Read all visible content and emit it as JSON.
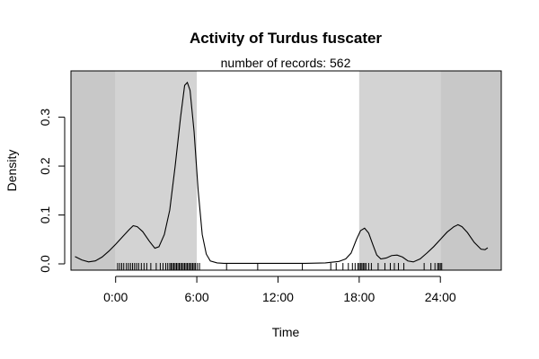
{
  "chart_data": {
    "type": "line",
    "title": "Activity of Turdus fuscater",
    "subtitle": "number of records: 562",
    "xlabel": "Time",
    "ylabel": "Density",
    "xlim": [
      -3.3,
      28.5
    ],
    "ylim": [
      0,
      0.38
    ],
    "x_ticks": [
      0,
      6,
      12,
      18,
      24
    ],
    "x_tick_labels": [
      "0:00",
      "6:00",
      "12:00",
      "18:00",
      "24:00"
    ],
    "y_ticks": [
      0.0,
      0.1,
      0.2,
      0.3
    ],
    "y_tick_labels": [
      "0.0",
      "0.1",
      "0.2",
      "0.3"
    ],
    "background": {
      "outer_shade_color": "#c8c8c8",
      "night_shade_color": "#d3d3d3",
      "day_color": "#ffffff",
      "night_bands": [
        [
          -3.3,
          0
        ],
        [
          0,
          6
        ],
        [
          18,
          24
        ],
        [
          24,
          28.5
        ]
      ]
    },
    "series": [
      {
        "points": [
          [
            -3.0,
            0.015
          ],
          [
            -2.5,
            0.008
          ],
          [
            -2.0,
            0.004
          ],
          [
            -1.5,
            0.006
          ],
          [
            -1.0,
            0.014
          ],
          [
            -0.5,
            0.026
          ],
          [
            0.0,
            0.04
          ],
          [
            0.5,
            0.055
          ],
          [
            1.0,
            0.07
          ],
          [
            1.3,
            0.078
          ],
          [
            1.6,
            0.076
          ],
          [
            2.0,
            0.066
          ],
          [
            2.5,
            0.046
          ],
          [
            2.9,
            0.032
          ],
          [
            3.2,
            0.035
          ],
          [
            3.6,
            0.06
          ],
          [
            4.0,
            0.11
          ],
          [
            4.4,
            0.2
          ],
          [
            4.8,
            0.3
          ],
          [
            5.1,
            0.365
          ],
          [
            5.3,
            0.371
          ],
          [
            5.5,
            0.355
          ],
          [
            5.8,
            0.27
          ],
          [
            6.1,
            0.15
          ],
          [
            6.4,
            0.06
          ],
          [
            6.7,
            0.02
          ],
          [
            7.0,
            0.006
          ],
          [
            7.5,
            0.002
          ],
          [
            8.0,
            0.001
          ],
          [
            10.0,
            0.001
          ],
          [
            12.0,
            0.001
          ],
          [
            14.0,
            0.001
          ],
          [
            15.5,
            0.002
          ],
          [
            16.5,
            0.005
          ],
          [
            17.0,
            0.01
          ],
          [
            17.4,
            0.022
          ],
          [
            17.8,
            0.05
          ],
          [
            18.1,
            0.068
          ],
          [
            18.4,
            0.073
          ],
          [
            18.7,
            0.063
          ],
          [
            19.0,
            0.04
          ],
          [
            19.3,
            0.018
          ],
          [
            19.6,
            0.01
          ],
          [
            20.0,
            0.012
          ],
          [
            20.4,
            0.017
          ],
          [
            20.8,
            0.018
          ],
          [
            21.2,
            0.014
          ],
          [
            21.6,
            0.006
          ],
          [
            22.0,
            0.004
          ],
          [
            22.5,
            0.01
          ],
          [
            23.0,
            0.022
          ],
          [
            23.5,
            0.035
          ],
          [
            24.0,
            0.05
          ],
          [
            24.5,
            0.065
          ],
          [
            25.0,
            0.076
          ],
          [
            25.3,
            0.08
          ],
          [
            25.6,
            0.076
          ],
          [
            26.0,
            0.064
          ],
          [
            26.5,
            0.044
          ],
          [
            27.0,
            0.03
          ],
          [
            27.3,
            0.029
          ],
          [
            27.5,
            0.033
          ]
        ],
        "color": "#000000"
      }
    ],
    "rug": [
      0.15,
      0.3,
      0.45,
      0.6,
      0.8,
      0.95,
      1.1,
      1.25,
      1.4,
      1.55,
      1.7,
      1.9,
      2.1,
      2.3,
      2.6,
      3.0,
      3.3,
      3.5,
      3.7,
      3.85,
      4.0,
      4.1,
      4.2,
      4.3,
      4.4,
      4.5,
      4.6,
      4.7,
      4.8,
      4.9,
      5.0,
      5.1,
      5.2,
      5.3,
      5.4,
      5.5,
      5.6,
      5.7,
      5.8,
      5.9,
      6.05,
      6.2,
      8.2,
      10.5,
      13.8,
      15.9,
      16.3,
      16.8,
      17.2,
      17.5,
      17.7,
      17.9,
      18.0,
      18.1,
      18.2,
      18.3,
      18.4,
      18.5,
      18.7,
      18.9,
      19.4,
      19.9,
      20.3,
      20.6,
      20.9,
      21.3,
      22.8,
      23.3,
      23.6,
      23.8,
      23.9,
      24.0,
      24.1
    ]
  }
}
